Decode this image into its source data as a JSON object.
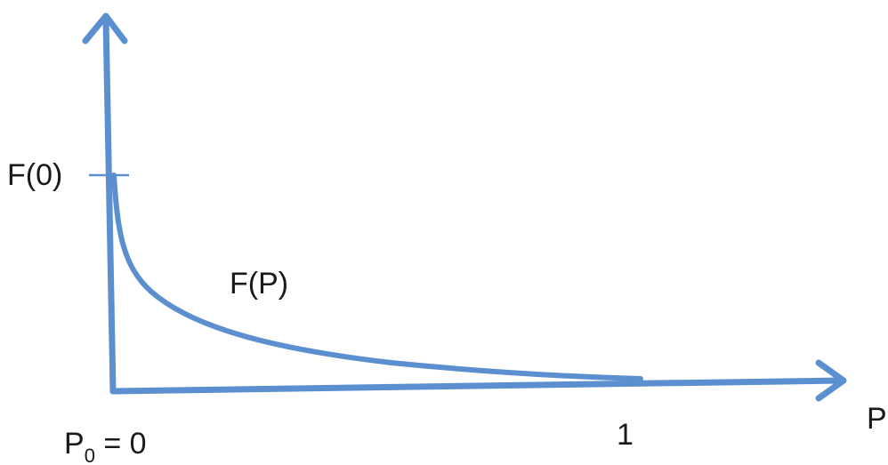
{
  "diagram": {
    "y_intercept_label": "F(0)",
    "curve_label": "F(P)",
    "origin_label_main": "P",
    "origin_label_sub": "0",
    "origin_label_rest": " = 0",
    "x_tick_label": "1",
    "x_axis_label": "P",
    "colors": {
      "stroke": "#5b8fd0",
      "text": "#1a1a1a"
    }
  }
}
